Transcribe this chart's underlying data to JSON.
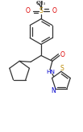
{
  "bg_color": "#ffffff",
  "bond_color": "#333333",
  "atom_colors": {
    "O": "#dd0000",
    "S": "#bb8800",
    "N": "#0000cc",
    "C": "#333333"
  },
  "figsize": [
    1.03,
    1.65
  ],
  "dpi": 100,
  "lw": 0.9
}
